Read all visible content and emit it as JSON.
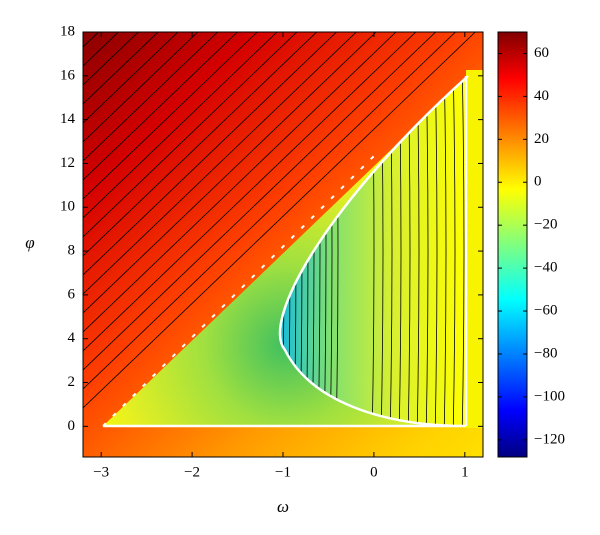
{
  "chart_data": {
    "type": "contour",
    "x_label": "ω",
    "y_label": "φ",
    "xlim": [
      -3.2,
      1.2
    ],
    "xticks": [
      {
        "value": -3,
        "label": "−3"
      },
      {
        "value": -2,
        "label": "−2"
      },
      {
        "value": -1,
        "label": "−1"
      },
      0,
      1
    ],
    "ylim": [
      -1.4,
      18
    ],
    "yticks": [
      0,
      2,
      4,
      6,
      8,
      10,
      12,
      14,
      16,
      18
    ],
    "colorbar": {
      "lim": [
        -128,
        70
      ],
      "ticks": [
        {
          "value": -120,
          "label": "−120"
        },
        {
          "value": -100,
          "label": "−100"
        },
        {
          "value": -80,
          "label": "−80"
        },
        {
          "value": -60,
          "label": "−60"
        },
        {
          "value": -40,
          "label": "−40"
        },
        {
          "value": -20,
          "label": "−20"
        },
        0,
        20,
        40,
        60
      ]
    }
  }
}
